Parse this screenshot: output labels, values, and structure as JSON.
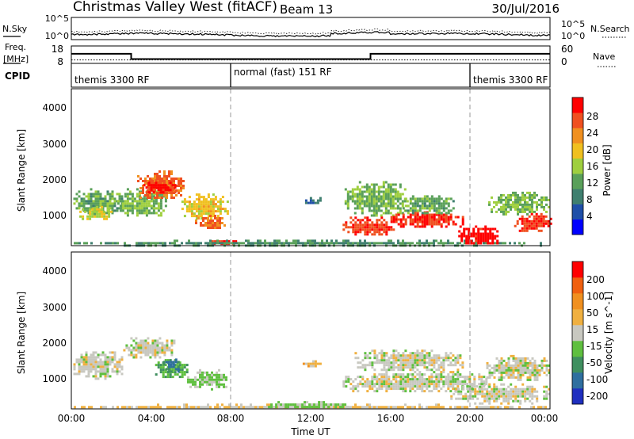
{
  "header": {
    "title": "Christmas Valley West (fitACF)",
    "beam": "Beam 13",
    "date": "30/Jul/2016"
  },
  "noise_panel": {
    "left_label": "N.Sky",
    "left_ticks": [
      "10^5",
      "10^0"
    ],
    "right_ticks": [
      "10^5",
      "10^0"
    ],
    "right_label": "N.Search"
  },
  "freq_panel": {
    "left_label_1": "Freq.",
    "left_label_2": "[MHz]",
    "left_ticks": [
      "18",
      "8"
    ],
    "right_ticks": [
      "60",
      "0"
    ],
    "right_label": "Nave",
    "freq_steps_utc_hours": [
      [
        0,
        3,
        13.5
      ],
      [
        3,
        15,
        10.5
      ],
      [
        15,
        24,
        13.5
      ]
    ],
    "nave_level": 12
  },
  "cpid": {
    "label": "CPID",
    "segments": [
      {
        "start_hour": 0,
        "text": "themis 3300 RF"
      },
      {
        "start_hour": 8,
        "text": "normal (fast) 151 RF"
      },
      {
        "start_hour": 20,
        "text": "themis 3300 RF"
      }
    ]
  },
  "power_colorbar": {
    "label": "Power [dB]",
    "ticks": [
      "28",
      "24",
      "20",
      "16",
      "12",
      "8",
      "4"
    ],
    "colors": [
      "#0000ff",
      "#1f4fa8",
      "#3f7f6f",
      "#5aa05a",
      "#9fcf3f",
      "#f0c020",
      "#f09020",
      "#f05020",
      "#ff0000"
    ]
  },
  "velocity_colorbar": {
    "label": "Velocity [m s^-1]",
    "ticks": [
      "200",
      "100",
      "50",
      "15",
      "-15",
      "-50",
      "-100",
      "-200"
    ],
    "colors": [
      "#1f2fbf",
      "#2f6f9f",
      "#3f8f5f",
      "#5fbf3f",
      "#c8c8c0",
      "#f0b040",
      "#f09020",
      "#f06010",
      "#ff0000"
    ]
  },
  "chart_data": {
    "type": "heatmap",
    "xlabel": "Time UT",
    "x_ticks": [
      "00:00",
      "04:00",
      "08:00",
      "12:00",
      "16:00",
      "20:00",
      "00:00"
    ],
    "x_range_hours": [
      0,
      24
    ],
    "y_range_km": [
      180,
      4600
    ],
    "panels": [
      {
        "name": "power",
        "ylabel": "Slant Range [km]",
        "y_ticks": [
          "4000",
          "3000",
          "2000",
          "1000"
        ],
        "units": "dB",
        "value_range": [
          0,
          30
        ],
        "patches": [
          {
            "t0": 0.1,
            "t1": 2.6,
            "r0": 1100,
            "r1": 1800,
            "value": 12
          },
          {
            "t0": 0.4,
            "t1": 2.0,
            "r0": 900,
            "r1": 1300,
            "value": 16
          },
          {
            "t0": 2.3,
            "t1": 4.8,
            "r0": 1000,
            "r1": 1800,
            "value": 13
          },
          {
            "t0": 3.3,
            "t1": 5.6,
            "r0": 1500,
            "r1": 2300,
            "value": 24
          },
          {
            "t0": 3.6,
            "t1": 5.2,
            "r0": 1650,
            "r1": 2050,
            "value": 28
          },
          {
            "t0": 5.4,
            "t1": 7.8,
            "r0": 950,
            "r1": 1650,
            "value": 18
          },
          {
            "t0": 6.2,
            "t1": 7.7,
            "r0": 700,
            "r1": 1050,
            "value": 24
          },
          {
            "t0": 7.0,
            "t1": 8.3,
            "r0": 200,
            "r1": 400,
            "value": 28
          },
          {
            "t0": 0.0,
            "t1": 24.0,
            "r0": 200,
            "r1": 350,
            "value": 10
          },
          {
            "t0": 11.6,
            "t1": 12.6,
            "r0": 1350,
            "r1": 1550,
            "value": 6
          },
          {
            "t0": 13.7,
            "t1": 16.8,
            "r0": 1050,
            "r1": 2000,
            "value": 13
          },
          {
            "t0": 13.6,
            "t1": 16.2,
            "r0": 500,
            "r1": 1000,
            "value": 26
          },
          {
            "t0": 16.0,
            "t1": 19.6,
            "r0": 700,
            "r1": 1150,
            "value": 27
          },
          {
            "t0": 16.6,
            "t1": 19.2,
            "r0": 1100,
            "r1": 1600,
            "value": 12
          },
          {
            "t0": 19.4,
            "t1": 21.4,
            "r0": 250,
            "r1": 750,
            "value": 29
          },
          {
            "t0": 20.9,
            "t1": 23.9,
            "r0": 1050,
            "r1": 1700,
            "value": 13
          },
          {
            "t0": 22.2,
            "t1": 24.0,
            "r0": 600,
            "r1": 1100,
            "value": 26
          }
        ]
      },
      {
        "name": "velocity",
        "ylabel": "Slant Range [km]",
        "y_ticks": [
          "4000",
          "3000",
          "2000",
          "1000"
        ],
        "units": "m s^-1",
        "value_range": [
          -200,
          200
        ],
        "patches": [
          {
            "t0": 0.1,
            "t1": 2.6,
            "r0": 1050,
            "r1": 1800,
            "value": 0
          },
          {
            "t0": 2.6,
            "t1": 5.2,
            "r0": 1650,
            "r1": 2200,
            "value": 0
          },
          {
            "t0": 4.2,
            "t1": 5.8,
            "r0": 1050,
            "r1": 1650,
            "value": -60
          },
          {
            "t0": 4.6,
            "t1": 5.4,
            "r0": 1250,
            "r1": 1600,
            "value": -120
          },
          {
            "t0": 5.8,
            "t1": 7.8,
            "r0": 750,
            "r1": 1300,
            "value": -30
          },
          {
            "t0": 0.0,
            "t1": 24.0,
            "r0": 200,
            "r1": 330,
            "value": 30
          },
          {
            "t0": 9.5,
            "t1": 14.0,
            "r0": 200,
            "r1": 400,
            "value": -30
          },
          {
            "t0": 11.6,
            "t1": 12.6,
            "r0": 1400,
            "r1": 1550,
            "value": 40
          },
          {
            "t0": 13.6,
            "t1": 21.0,
            "r0": 650,
            "r1": 1250,
            "value": 0
          },
          {
            "t0": 14.2,
            "t1": 19.6,
            "r0": 1250,
            "r1": 1850,
            "value": 0
          },
          {
            "t0": 19.0,
            "t1": 24.0,
            "r0": 350,
            "r1": 900,
            "value": 0
          },
          {
            "t0": 20.8,
            "t1": 24.0,
            "r0": 1000,
            "r1": 1700,
            "value": 0
          }
        ]
      }
    ]
  }
}
